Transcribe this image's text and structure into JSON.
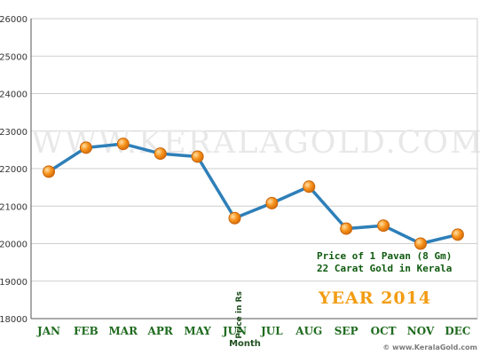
{
  "chart_data": {
    "type": "line",
    "categories": [
      "JAN",
      "FEB",
      "MAR",
      "APR",
      "MAY",
      "JUN",
      "JUL",
      "AUG",
      "SEP",
      "OCT",
      "NOV",
      "DEC"
    ],
    "series": [
      {
        "values": [
          21920,
          22560,
          22660,
          22400,
          22320,
          20680,
          21080,
          21520,
          20400,
          20480,
          20000,
          20240
        ]
      }
    ],
    "xlabel": "Month",
    "ylabel": "Price in Rs",
    "ylim": [
      18000,
      26000
    ],
    "yticks": [
      18000,
      19000,
      20000,
      21000,
      22000,
      23000,
      24000,
      25000,
      26000
    ],
    "grid": true,
    "watermark": "WWW.KERALAGOLD.COM",
    "annotation_line1": "Price of 1 Pavan (8 Gm)",
    "annotation_line2": "22 Carat Gold in Kerala",
    "year_label": "YEAR 2014",
    "copyright": "© www.KeralaGold.com",
    "colors": {
      "line": "#2e7fb8",
      "marker_fill": "#f7941d",
      "marker_highlight": "#ffd699",
      "grid": "#cfcfcf",
      "year": "#f39c12",
      "labels": "#1f6b1f"
    }
  }
}
